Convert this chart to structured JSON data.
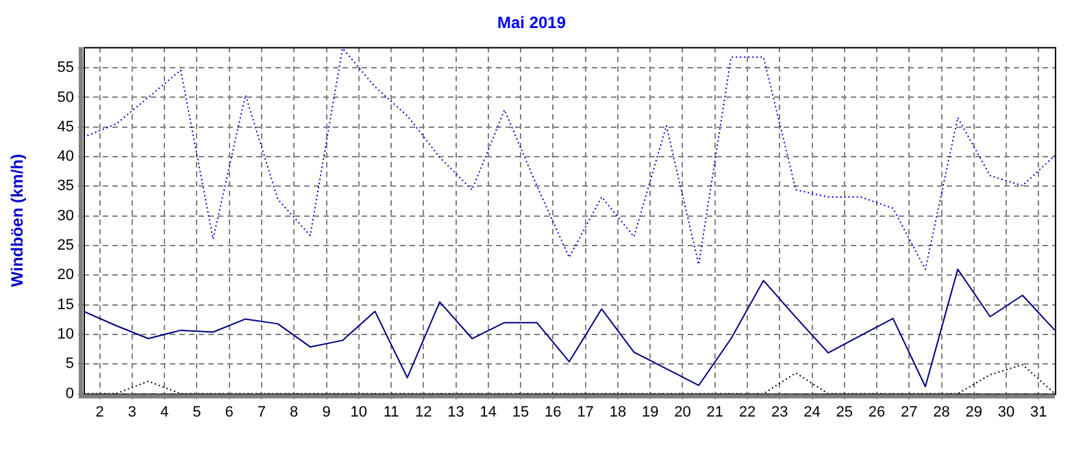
{
  "chart_data": {
    "type": "line",
    "title": "Mai 2019",
    "ylabel": "Windböen (km/h)",
    "x": [
      1.5,
      2.5,
      3.5,
      4.5,
      5.5,
      6.5,
      7.5,
      8.5,
      9.5,
      10.5,
      11.5,
      12.5,
      13.5,
      14.5,
      15.5,
      16.5,
      17.5,
      18.5,
      19.5,
      20.5,
      21.5,
      22.5,
      23.5,
      24.5,
      25.5,
      26.5,
      27.5,
      28.5,
      29.5,
      30.5,
      31.5
    ],
    "xlim": [
      1.5,
      31.5
    ],
    "xticks": [
      2,
      3,
      4,
      5,
      6,
      7,
      8,
      9,
      10,
      11,
      12,
      13,
      14,
      15,
      16,
      17,
      18,
      19,
      20,
      21,
      22,
      23,
      24,
      25,
      26,
      27,
      28,
      29,
      30,
      31
    ],
    "ylim": [
      0,
      58.5
    ],
    "yticks": [
      0,
      5,
      10,
      15,
      20,
      25,
      30,
      35,
      40,
      45,
      50,
      55
    ],
    "grid": true,
    "marker": "none",
    "series": [
      {
        "color": "#0000cc",
        "line_style": "dotted",
        "values": [
          43.3,
          45.5,
          50,
          54.6,
          26.1,
          50.4,
          32.8,
          26.7,
          58.3,
          51.8,
          46.9,
          39.9,
          34.4,
          47.9,
          35.1,
          23,
          33.2,
          26.5,
          45.2,
          21.8,
          56.8,
          56.8,
          34.4,
          33.2,
          33.2,
          31.3,
          21,
          46.6,
          36.8,
          35.1,
          40.2
        ]
      },
      {
        "color": "#000080",
        "line_style": "solid",
        "values": [
          13.9,
          11.5,
          9.3,
          10.7,
          10.4,
          12.6,
          11.8,
          7.9,
          9,
          13.9,
          2.7,
          15.5,
          9.3,
          12,
          12,
          5.4,
          14.3,
          7,
          4.2,
          1.4,
          9.3,
          19.1,
          12.9,
          6.9,
          9.8,
          12.7,
          1.2,
          21,
          13,
          16.6,
          10.7
        ]
      },
      {
        "color": "#000000",
        "line_style": "dotted",
        "values": [
          0,
          0,
          2.1,
          0,
          0,
          0,
          0,
          0,
          0,
          0,
          0,
          0,
          0,
          0,
          0,
          0,
          0,
          0,
          0,
          0,
          0,
          0,
          3.5,
          0,
          0,
          0,
          0,
          0,
          3.2,
          4.9,
          0
        ]
      }
    ]
  }
}
